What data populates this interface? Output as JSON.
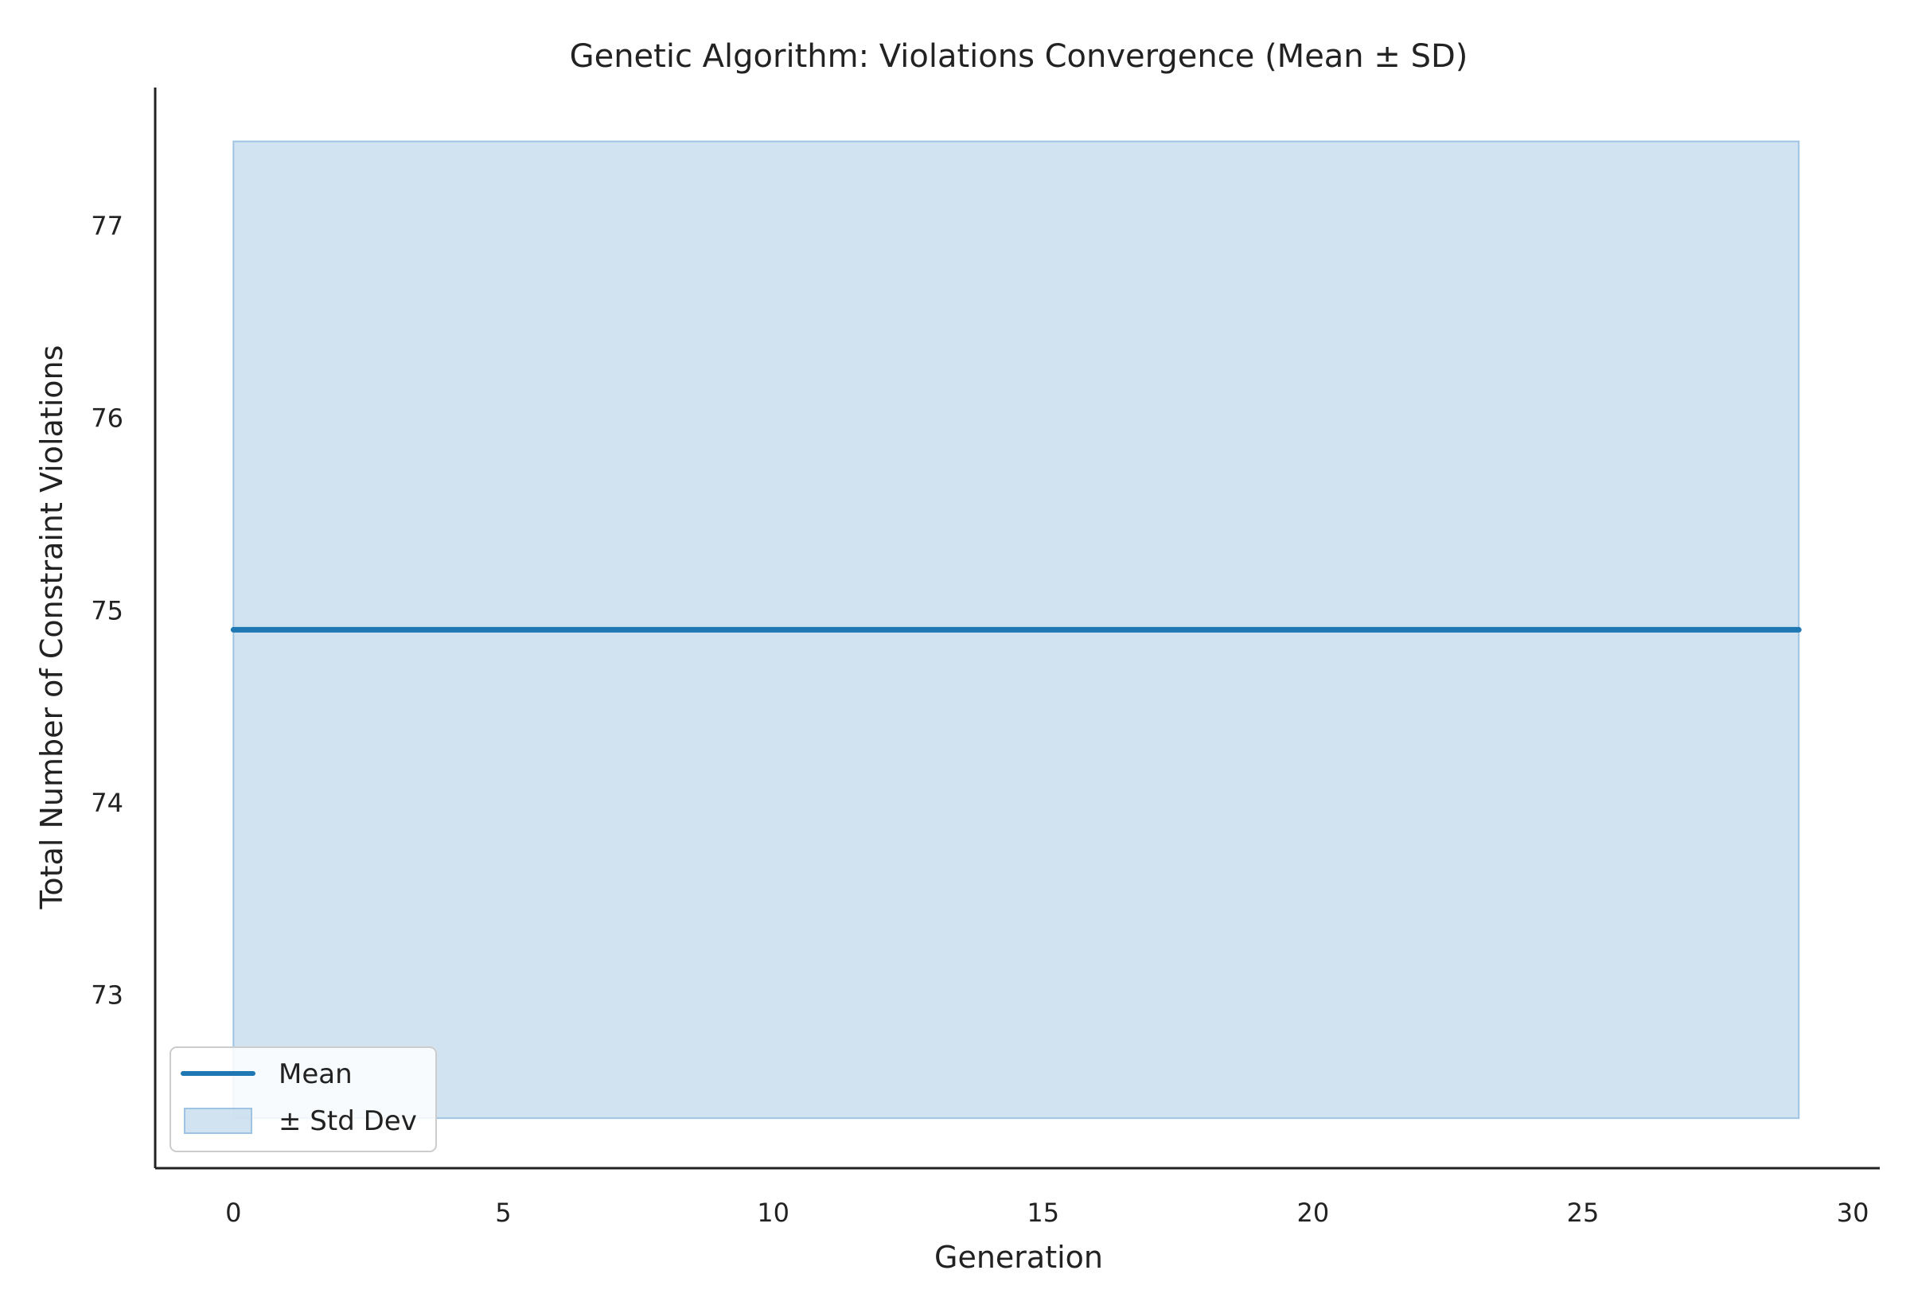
{
  "chart_data": {
    "type": "line",
    "title": "Genetic Algorithm: Violations Convergence (Mean ± SD)",
    "xlabel": "Generation",
    "ylabel": "Total Number of Constraint Violations",
    "xlim": [
      -1.45,
      30.5
    ],
    "ylim": [
      72.1,
      77.72
    ],
    "x_ticks": [
      0,
      5,
      10,
      15,
      20,
      25,
      30
    ],
    "y_ticks": [
      73,
      74,
      75,
      76,
      77
    ],
    "grid": false,
    "legend_position": "lower-left",
    "series": [
      {
        "name": "Mean",
        "x_start": 0,
        "x_end": 29,
        "y": 74.9,
        "color": "#1f77b4"
      }
    ],
    "band": {
      "name": "± Std Dev",
      "x_start": 0,
      "x_end": 29,
      "y_low": 72.36,
      "y_high": 77.44,
      "fill_color": "#b9d4e9",
      "edge_color": "#9fc3e2"
    },
    "legend": [
      "Mean",
      "± Std Dev"
    ]
  }
}
